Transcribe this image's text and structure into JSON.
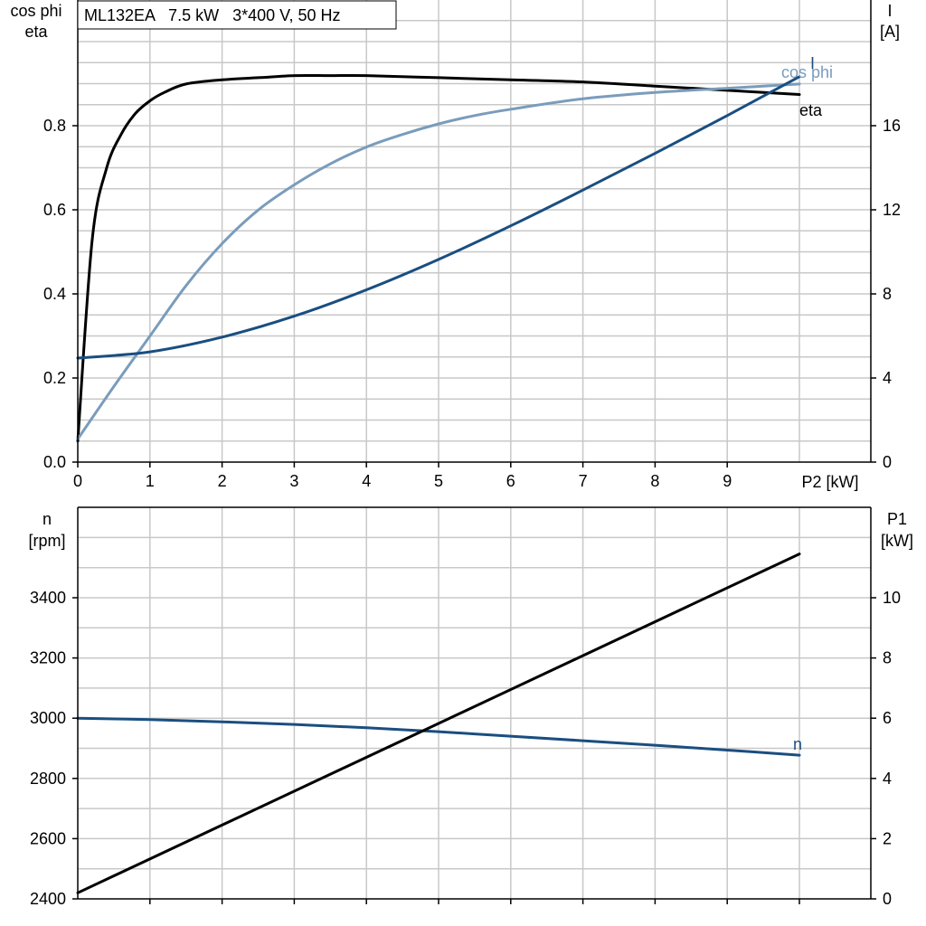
{
  "chart_data": [
    {
      "type": "line",
      "title": "ML132EA   7.5 kW   3*400 V, 50 Hz",
      "xlabel": "P2 [kW]",
      "xlim": [
        0,
        10
      ],
      "xticks": [
        0,
        1,
        2,
        3,
        4,
        5,
        6,
        7,
        8,
        9
      ],
      "ylabel_left": [
        "cos phi",
        "eta"
      ],
      "ylim_left": [
        0,
        1.1
      ],
      "yticks_left": [
        "0.0",
        "0.2",
        "0.4",
        "0.6",
        "0.8"
      ],
      "ylabel_right": [
        "I",
        "[A]"
      ],
      "ylim_right": [
        0,
        22
      ],
      "yticks_right": [
        "0",
        "4",
        "8",
        "12",
        "16"
      ],
      "grid": true,
      "series": [
        {
          "name": "eta",
          "axis": "left",
          "color": "#000000",
          "x": [
            0,
            0.2,
            0.4,
            0.6,
            0.8,
            1.0,
            1.2,
            1.5,
            2.0,
            2.5,
            3.0,
            3.5,
            4.0,
            5.0,
            6.0,
            7.0,
            8.0,
            9.0,
            10.0
          ],
          "y": [
            0.05,
            0.53,
            0.7,
            0.78,
            0.83,
            0.86,
            0.88,
            0.9,
            0.91,
            0.915,
            0.92,
            0.92,
            0.92,
            0.915,
            0.91,
            0.905,
            0.895,
            0.885,
            0.875
          ]
        },
        {
          "name": "cos phi",
          "axis": "left",
          "color": "#7a9cbc",
          "x": [
            0,
            0.5,
            1.0,
            1.5,
            2.0,
            2.5,
            3.0,
            3.5,
            4.0,
            4.5,
            5.0,
            5.5,
            6.0,
            7.0,
            8.0,
            9.0,
            10.0
          ],
          "y": [
            0.055,
            0.18,
            0.3,
            0.42,
            0.52,
            0.6,
            0.66,
            0.71,
            0.75,
            0.78,
            0.805,
            0.825,
            0.84,
            0.865,
            0.88,
            0.89,
            0.9
          ]
        },
        {
          "name": "I",
          "axis": "right",
          "color": "#1a4e80",
          "x": [
            0,
            1,
            2,
            3,
            4,
            5,
            6,
            7,
            8,
            9,
            10
          ],
          "y": [
            4.95,
            5.25,
            5.95,
            6.95,
            8.2,
            9.65,
            11.25,
            12.95,
            14.7,
            16.5,
            18.35
          ]
        }
      ]
    },
    {
      "type": "line",
      "xlim": [
        0,
        10
      ],
      "ylabel_left": [
        "n",
        "[rpm]"
      ],
      "ylim_left": [
        2400,
        3700
      ],
      "yticks_left": [
        "2400",
        "2600",
        "2800",
        "3000",
        "3200",
        "3400"
      ],
      "ylabel_right": [
        "P1",
        "[kW]"
      ],
      "ylim_right": [
        0,
        13
      ],
      "yticks_right": [
        "0",
        "2",
        "4",
        "6",
        "8",
        "10"
      ],
      "grid": true,
      "series": [
        {
          "name": "n",
          "axis": "left",
          "color": "#1a4e80",
          "x": [
            0,
            1,
            2,
            3,
            4,
            5,
            6,
            7,
            8,
            9,
            10
          ],
          "y": [
            3000,
            2995,
            2988,
            2979,
            2968,
            2955,
            2940,
            2925,
            2910,
            2894,
            2877
          ]
        },
        {
          "name": "P1",
          "axis": "right",
          "color": "#000000",
          "x": [
            0,
            10
          ],
          "y": [
            0.2,
            11.45
          ]
        }
      ]
    }
  ]
}
